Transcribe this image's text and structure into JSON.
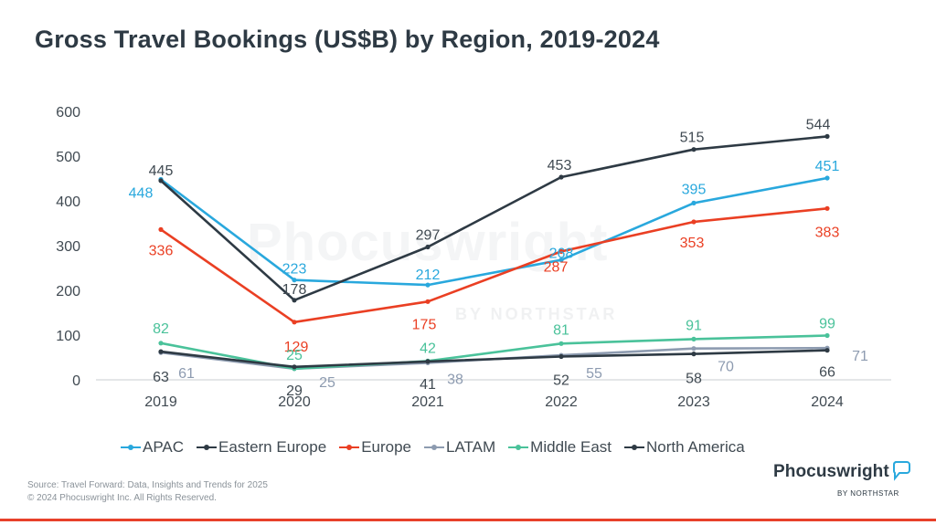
{
  "title": "Gross Travel Bookings (US$B) by Region, 2019-2024",
  "watermark": {
    "word": "Phocuswright",
    "sub": "BY NORTHSTAR"
  },
  "source": {
    "line1": "Source: Travel Forward: Data, Insights and Trends for 2025",
    "line2": "© 2024 Phocuswright Inc. All Rights Reserved."
  },
  "logo": {
    "word": "Phocuswright",
    "sub": "BY NORTHSTAR"
  },
  "chart_data": {
    "type": "line",
    "x": [
      "2019",
      "2020",
      "2021",
      "2022",
      "2023",
      "2024"
    ],
    "ylim": [
      0,
      600
    ],
    "yticks": [
      0,
      100,
      200,
      300,
      400,
      500,
      600
    ],
    "grid": false,
    "legend_position": "bottom",
    "series": [
      {
        "name": "APAC",
        "color": "#29a8dd",
        "values": [
          448,
          223,
          212,
          268,
          395,
          451
        ]
      },
      {
        "name": "Eastern Europe",
        "color": "#2e3a44",
        "values": [
          445,
          178,
          297,
          453,
          515,
          544
        ]
      },
      {
        "name": "Europe",
        "color": "#ea3f23",
        "values": [
          336,
          129,
          175,
          287,
          353,
          383
        ]
      },
      {
        "name": "LATAM",
        "color": "#8d9bb0",
        "values": [
          61,
          25,
          38,
          55,
          70,
          71
        ]
      },
      {
        "name": "Middle East",
        "color": "#4ac29a",
        "values": [
          82,
          25,
          42,
          81,
          91,
          99
        ]
      },
      {
        "name": "North America",
        "color": "#2e3a44",
        "values": [
          63,
          29,
          41,
          52,
          58,
          66
        ]
      }
    ]
  }
}
